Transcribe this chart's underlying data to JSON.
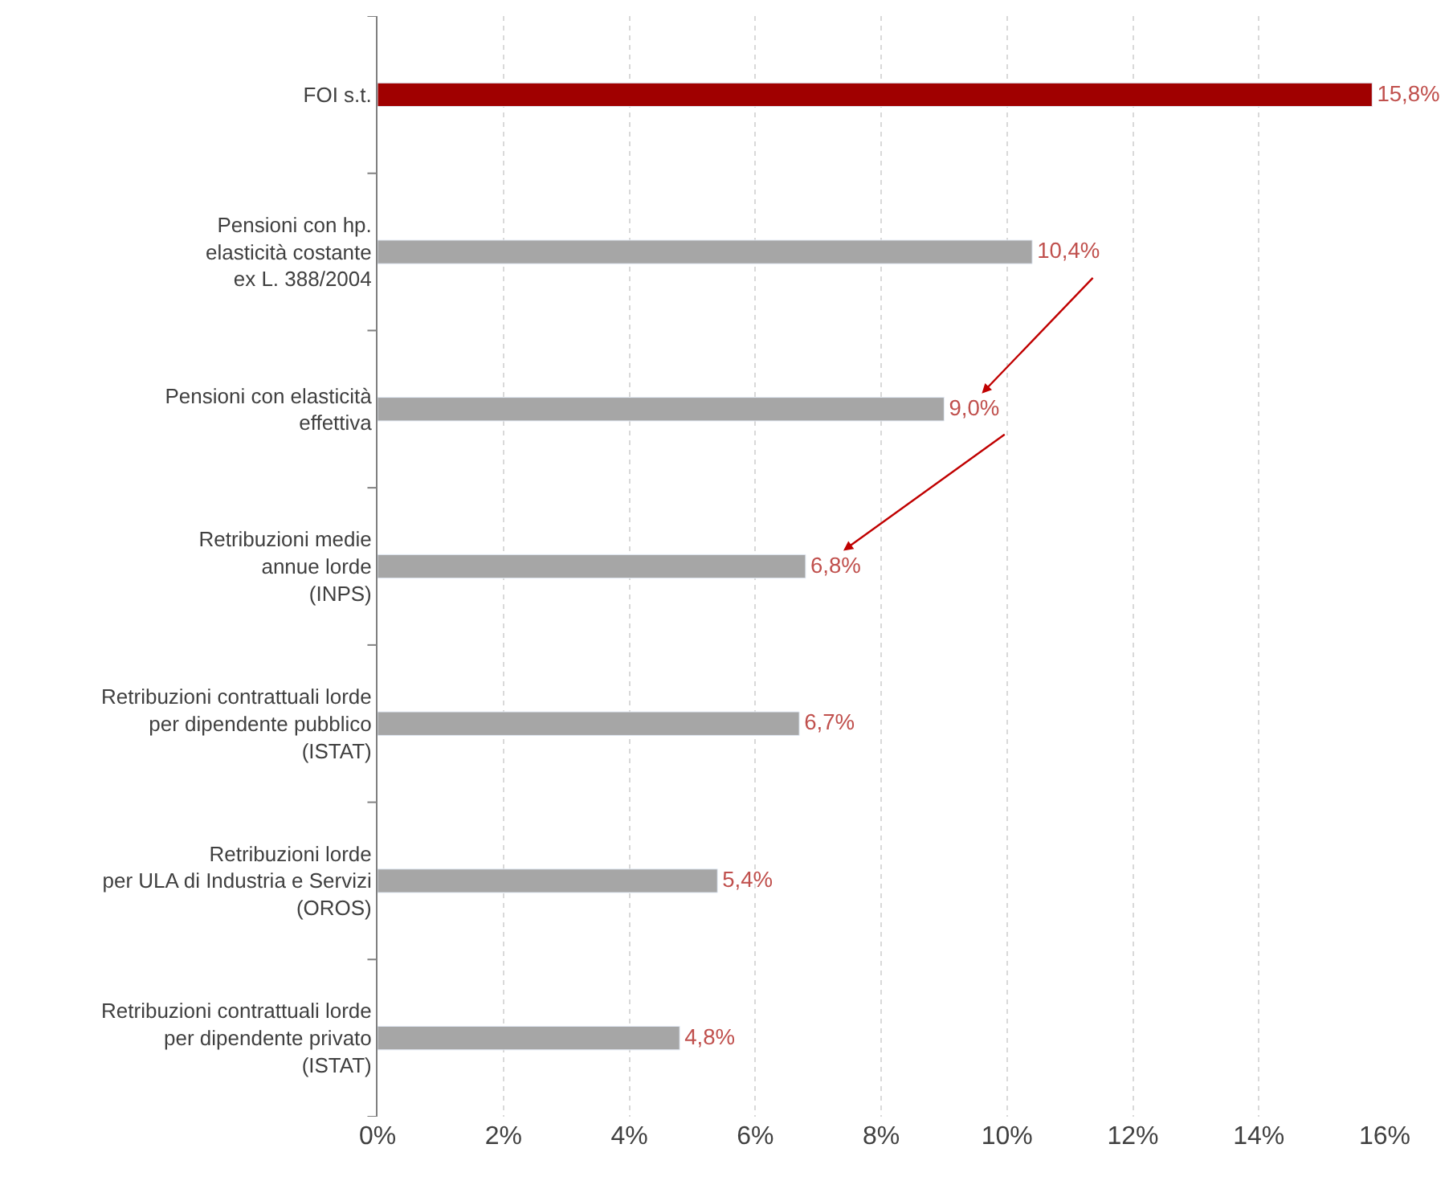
{
  "chart_data": {
    "type": "bar",
    "orientation": "horizontal",
    "categories": [
      "FOI s.t.",
      "Pensioni con hp.\nelasticità costante\nex L. 388/2004",
      "Pensioni con elasticità\neffettiva",
      "Retribuzioni medie\nannue lorde\n(INPS)",
      "Retribuzioni contrattuali lorde\nper dipendente pubblico\n(ISTAT)",
      "Retribuzioni lorde\nper ULA di Industria e Servizi\n(OROS)",
      "Retribuzioni contrattuali lorde\nper dipendente privato\n(ISTAT)"
    ],
    "values": [
      15.8,
      10.4,
      9.0,
      6.8,
      6.7,
      5.4,
      4.8
    ],
    "colors": [
      "#a00000",
      "#a6a6a6",
      "#a6a6a6",
      "#a6a6a6",
      "#a6a6a6",
      "#a6a6a6",
      "#a6a6a6"
    ],
    "value_labels": [
      "15,8%",
      "10,4%",
      "9,0%",
      "6,8%",
      "6,7%",
      "5,4%",
      "4,8%"
    ],
    "xlim": [
      0,
      16
    ],
    "xticks": [
      {
        "value": 0,
        "label": "0%"
      },
      {
        "value": 2,
        "label": "2%"
      },
      {
        "value": 4,
        "label": "4%"
      },
      {
        "value": 6,
        "label": "6%"
      },
      {
        "value": 8,
        "label": "8%"
      },
      {
        "value": 10,
        "label": "10%"
      },
      {
        "value": 12,
        "label": "12%"
      },
      {
        "value": 14,
        "label": "14%"
      },
      {
        "value": 16,
        "label": "16%"
      }
    ],
    "grid": "x"
  }
}
